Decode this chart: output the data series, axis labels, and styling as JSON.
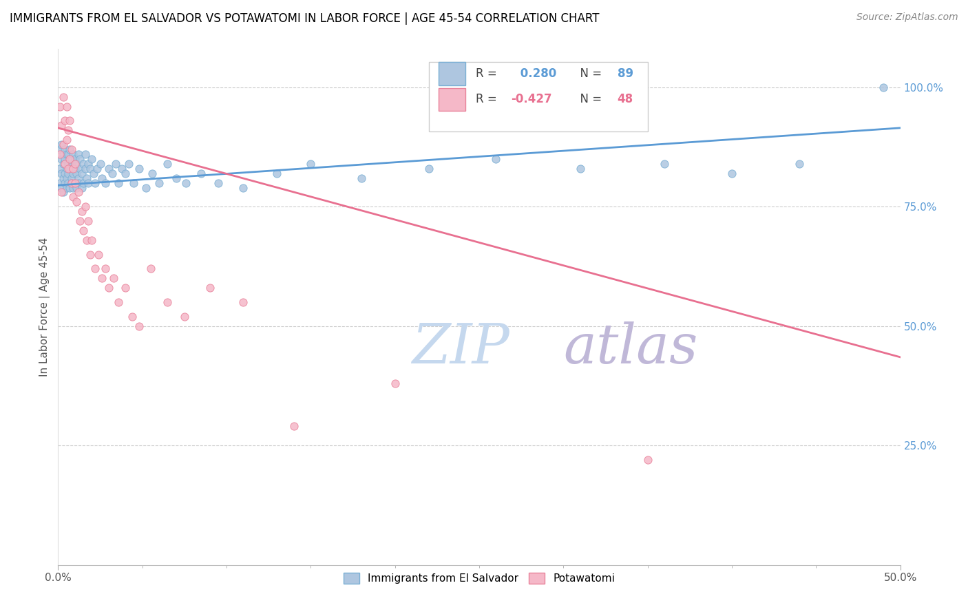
{
  "title": "IMMIGRANTS FROM EL SALVADOR VS POTAWATOMI IN LABOR FORCE | AGE 45-54 CORRELATION CHART",
  "source": "Source: ZipAtlas.com",
  "ylabel": "In Labor Force | Age 45-54",
  "xlim": [
    0.0,
    0.5
  ],
  "ylim": [
    0.0,
    1.08
  ],
  "xticks_major": [
    0.0,
    0.5
  ],
  "xticklabels_major": [
    "0.0%",
    "50.0%"
  ],
  "xticks_minor": [
    0.05,
    0.1,
    0.15,
    0.2,
    0.25,
    0.3,
    0.35,
    0.4,
    0.45
  ],
  "yticklabels_right": [
    "25.0%",
    "50.0%",
    "75.0%",
    "100.0%"
  ],
  "yticks_right": [
    0.25,
    0.5,
    0.75,
    1.0
  ],
  "blue_R": 0.28,
  "blue_N": 89,
  "pink_R": -0.427,
  "pink_N": 48,
  "blue_color": "#aec6e0",
  "pink_color": "#f5b8c8",
  "blue_edge_color": "#7aafd4",
  "pink_edge_color": "#e8829a",
  "blue_line_color": "#5b9bd5",
  "pink_line_color": "#e87090",
  "blue_trend_x": [
    0.0,
    0.5
  ],
  "blue_trend_y": [
    0.795,
    0.915
  ],
  "pink_trend_x": [
    0.0,
    0.5
  ],
  "pink_trend_y": [
    0.915,
    0.435
  ],
  "blue_scatter_x": [
    0.001,
    0.001,
    0.001,
    0.002,
    0.002,
    0.002,
    0.002,
    0.003,
    0.003,
    0.003,
    0.003,
    0.004,
    0.004,
    0.004,
    0.004,
    0.005,
    0.005,
    0.005,
    0.005,
    0.006,
    0.006,
    0.006,
    0.006,
    0.007,
    0.007,
    0.007,
    0.008,
    0.008,
    0.008,
    0.008,
    0.009,
    0.009,
    0.009,
    0.01,
    0.01,
    0.01,
    0.011,
    0.011,
    0.011,
    0.012,
    0.012,
    0.012,
    0.013,
    0.013,
    0.014,
    0.014,
    0.015,
    0.015,
    0.016,
    0.016,
    0.017,
    0.018,
    0.018,
    0.019,
    0.02,
    0.021,
    0.022,
    0.023,
    0.025,
    0.026,
    0.028,
    0.03,
    0.032,
    0.034,
    0.036,
    0.038,
    0.04,
    0.042,
    0.045,
    0.048,
    0.052,
    0.056,
    0.06,
    0.065,
    0.07,
    0.076,
    0.085,
    0.095,
    0.11,
    0.13,
    0.15,
    0.18,
    0.22,
    0.26,
    0.31,
    0.36,
    0.4,
    0.44,
    0.49
  ],
  "blue_scatter_y": [
    0.83,
    0.87,
    0.8,
    0.85,
    0.82,
    0.79,
    0.88,
    0.84,
    0.81,
    0.86,
    0.78,
    0.85,
    0.82,
    0.8,
    0.87,
    0.83,
    0.79,
    0.86,
    0.81,
    0.84,
    0.8,
    0.82,
    0.86,
    0.79,
    0.83,
    0.87,
    0.81,
    0.84,
    0.8,
    0.85,
    0.82,
    0.79,
    0.86,
    0.83,
    0.8,
    0.85,
    0.82,
    0.79,
    0.84,
    0.81,
    0.86,
    0.8,
    0.83,
    0.85,
    0.82,
    0.79,
    0.84,
    0.8,
    0.83,
    0.86,
    0.81,
    0.84,
    0.8,
    0.83,
    0.85,
    0.82,
    0.8,
    0.83,
    0.84,
    0.81,
    0.8,
    0.83,
    0.82,
    0.84,
    0.8,
    0.83,
    0.82,
    0.84,
    0.8,
    0.83,
    0.79,
    0.82,
    0.8,
    0.84,
    0.81,
    0.8,
    0.82,
    0.8,
    0.79,
    0.82,
    0.84,
    0.81,
    0.83,
    0.85,
    0.83,
    0.84,
    0.82,
    0.84,
    1.0
  ],
  "pink_scatter_x": [
    0.001,
    0.001,
    0.002,
    0.002,
    0.003,
    0.003,
    0.004,
    0.004,
    0.005,
    0.005,
    0.006,
    0.006,
    0.007,
    0.007,
    0.008,
    0.008,
    0.009,
    0.009,
    0.01,
    0.01,
    0.011,
    0.012,
    0.013,
    0.014,
    0.015,
    0.016,
    0.017,
    0.018,
    0.019,
    0.02,
    0.022,
    0.024,
    0.026,
    0.028,
    0.03,
    0.033,
    0.036,
    0.04,
    0.044,
    0.048,
    0.055,
    0.065,
    0.075,
    0.09,
    0.11,
    0.14,
    0.2,
    0.35
  ],
  "pink_scatter_y": [
    0.86,
    0.96,
    0.92,
    0.78,
    0.88,
    0.98,
    0.84,
    0.93,
    0.89,
    0.96,
    0.83,
    0.91,
    0.85,
    0.93,
    0.87,
    0.8,
    0.83,
    0.77,
    0.8,
    0.84,
    0.76,
    0.78,
    0.72,
    0.74,
    0.7,
    0.75,
    0.68,
    0.72,
    0.65,
    0.68,
    0.62,
    0.65,
    0.6,
    0.62,
    0.58,
    0.6,
    0.55,
    0.58,
    0.52,
    0.5,
    0.62,
    0.55,
    0.52,
    0.58,
    0.55,
    0.29,
    0.38,
    0.22
  ],
  "watermark_top": "ZIP",
  "watermark_bottom": "atlas",
  "watermark_color_zip": "#c5d8ee",
  "watermark_color_atlas": "#c0b8d8",
  "legend_blue_label": "Immigrants from El Salvador",
  "legend_pink_label": "Potawatomi",
  "marker_size": 65
}
